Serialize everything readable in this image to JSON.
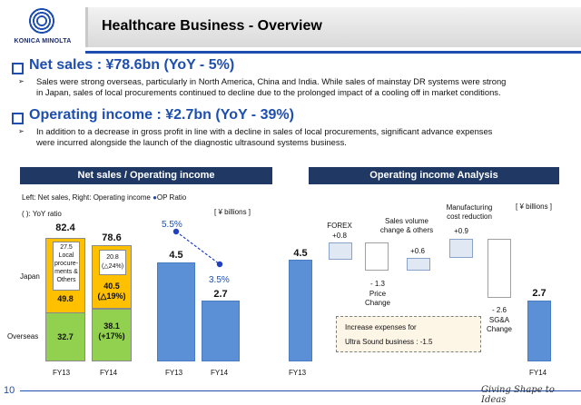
{
  "logo": {
    "text": "KONICA MINOLTA"
  },
  "page_title": "Healthcare Business - Overview",
  "net_sales": {
    "headline": "Net sales :     ¥78.6bn  (YoY - 5%)",
    "bullet_line1": "Sales were strong overseas, particularly in North America, China and India. While sales of mainstay DR systems were strong",
    "bullet_line2": "in Japan, sales of local procurements continued to decline due to the prolonged impact of a cooling off in market conditions."
  },
  "operating_income": {
    "headline": "Operating income :   ¥2.7bn  (YoY - 39%)",
    "bullet_line1": "In addition to a decrease in gross profit in line with a decline in sales of local procurements, significant advance expenses",
    "bullet_line2": "were incurred alongside the launch of the diagnostic ultrasound systems business."
  },
  "left_panel": {
    "title": "Net sales / Operating income",
    "legend_prefix": "Left: Net sales,  Right: Operating income ",
    "legend_op": "OP Ratio",
    "yoy_note": "( ): YoY ratio",
    "unit": "[ ¥ billions ]",
    "row_japan": "Japan",
    "row_overseas": "Overseas",
    "fy13": "FY13",
    "fy14": "FY14",
    "totals": [
      "82.4",
      "78.6"
    ],
    "local_label_fy13": [
      "27.5",
      "Local",
      "procure-",
      "ments &",
      "Others"
    ],
    "local_label_fy14": [
      "20.8",
      "(△24%)"
    ],
    "japan_fy13": "49.8",
    "japan_fy14": [
      "40.5",
      "(△19%)"
    ],
    "overseas_fy13": "32.7",
    "overseas_fy14": [
      "38.1",
      "(+17%)"
    ],
    "op_values": [
      "4.5",
      "2.7"
    ],
    "op_ratios": [
      "5.5%",
      "3.5%"
    ]
  },
  "chart_data": [
    {
      "type": "bar",
      "title": "Net sales / Operating income",
      "categories": [
        "FY13",
        "FY14"
      ],
      "series": [
        {
          "name": "Overseas",
          "values": [
            32.7,
            38.1
          ]
        },
        {
          "name": "Japan",
          "values": [
            49.8,
            40.5
          ]
        },
        {
          "name": "Local procurements & Others",
          "values": [
            27.5,
            20.8
          ]
        },
        {
          "name": "Operating income",
          "values": [
            4.5,
            2.7
          ]
        },
        {
          "name": "OP Ratio",
          "values": [
            5.5,
            3.5
          ]
        }
      ],
      "totals": [
        82.4,
        78.6
      ]
    },
    {
      "type": "bar",
      "title": "Operating income Analysis",
      "categories": [
        "FY13",
        "FOREX",
        "Price Change",
        "Sales volume change & others",
        "Manufacturing cost reduction",
        "SG&A Change",
        "FY14"
      ],
      "values": [
        4.5,
        0.8,
        -1.3,
        0.6,
        0.9,
        -2.6,
        2.7
      ]
    }
  ],
  "right_panel": {
    "title": "Operating income Analysis",
    "unit": "[ ¥ billions ]",
    "fy13_value": "4.5",
    "fy14_value": "2.7",
    "forex_label": "FOREX",
    "forex_value": "+0.8",
    "price_value": "- 1.3",
    "price_label": [
      "Price",
      "Change"
    ],
    "sales_label": [
      "Sales volume",
      "change & others"
    ],
    "sales_value": "+0.6",
    "mfg_label": [
      "Manufacturing",
      "cost reduction"
    ],
    "mfg_value": "+0.9",
    "sga_value": "- 2.6",
    "sga_label": [
      "SG&A",
      "Change"
    ],
    "note_line1": "Increase expenses for",
    "note_line2": "Ultra Sound business  : -1.5",
    "fy13": "FY13",
    "fy14": "FY14"
  },
  "footer": {
    "page_number": "10",
    "slogan": "Giving Shape to Ideas"
  },
  "colors": {
    "brand_blue": "#1e4fb0",
    "header_bar": "#1f3864",
    "bar_blue": "#5b8fd6",
    "yellow": "#ffc000",
    "green": "#92d050"
  }
}
